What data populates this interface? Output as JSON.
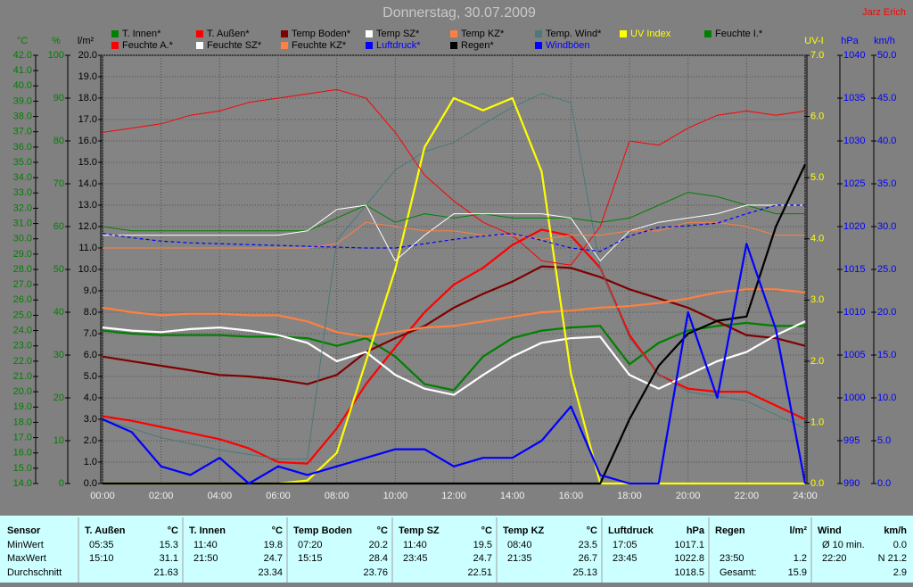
{
  "chart_data": {
    "type": "line",
    "title": "Donnerstag, 30.07.2009",
    "author": "Jarz Erich",
    "grid": true,
    "x": [
      0,
      1,
      2,
      3,
      4,
      5,
      6,
      7,
      8,
      9,
      10,
      11,
      12,
      13,
      14,
      15,
      16,
      17,
      18,
      19,
      20,
      21,
      22,
      23,
      24
    ],
    "xlim": [
      0,
      24
    ],
    "xticks": [
      {
        "value": 0,
        "label": "00:00"
      },
      {
        "value": 2,
        "label": "02:00"
      },
      {
        "value": 4,
        "label": "04:00"
      },
      {
        "value": 6,
        "label": "06:00"
      },
      {
        "value": 8,
        "label": "08:00"
      },
      {
        "value": 10,
        "label": "10:00"
      },
      {
        "value": 12,
        "label": "12:00"
      },
      {
        "value": 14,
        "label": "14:00"
      },
      {
        "value": 16,
        "label": "16:00"
      },
      {
        "value": 18,
        "label": "18:00"
      },
      {
        "value": 20,
        "label": "20:00"
      },
      {
        "value": 22,
        "label": "22:00"
      },
      {
        "value": 24,
        "label": "24:00"
      }
    ],
    "y_axes": [
      {
        "unit": "°C",
        "color": "#008000",
        "ylim": [
          14,
          42
        ],
        "yticks": [
          {
            "value": 14,
            "label": "14.0"
          },
          {
            "value": 15,
            "label": "15.0"
          },
          {
            "value": 16,
            "label": "16.0"
          },
          {
            "value": 17,
            "label": "17.0"
          },
          {
            "value": 18,
            "label": "18.0"
          },
          {
            "value": 19,
            "label": "19.0"
          },
          {
            "value": 20,
            "label": "20.0"
          },
          {
            "value": 21,
            "label": "21.0"
          },
          {
            "value": 22,
            "label": "22.0"
          },
          {
            "value": 23,
            "label": "23.0"
          },
          {
            "value": 24,
            "label": "24.0"
          },
          {
            "value": 25,
            "label": "25.0"
          },
          {
            "value": 26,
            "label": "26.0"
          },
          {
            "value": 27,
            "label": "27.0"
          },
          {
            "value": 28,
            "label": "28.0"
          },
          {
            "value": 29,
            "label": "29.0"
          },
          {
            "value": 30,
            "label": "30.0"
          },
          {
            "value": 31,
            "label": "31.0"
          },
          {
            "value": 32,
            "label": "32.0"
          },
          {
            "value": 33,
            "label": "33.0"
          },
          {
            "value": 34,
            "label": "34.0"
          },
          {
            "value": 35,
            "label": "35.0"
          },
          {
            "value": 36,
            "label": "36.0"
          },
          {
            "value": 37,
            "label": "37.0"
          },
          {
            "value": 38,
            "label": "38.0"
          },
          {
            "value": 39,
            "label": "39.0"
          },
          {
            "value": 40,
            "label": "40.0"
          },
          {
            "value": 41,
            "label": "41.0"
          },
          {
            "value": 42,
            "label": "42.0"
          }
        ]
      },
      {
        "unit": "%",
        "color": "#008000",
        "ylim": [
          0,
          100
        ],
        "yticks": [
          0,
          10,
          20,
          30,
          40,
          50,
          60,
          70,
          80,
          90,
          100
        ]
      },
      {
        "unit": "l/m²",
        "color": "#000000",
        "grid": true,
        "ylim": [
          0,
          20
        ],
        "yticks": [
          {
            "value": 0,
            "label": "0.0"
          },
          {
            "value": 1,
            "label": "1.0"
          },
          {
            "value": 2,
            "label": "2.0"
          },
          {
            "value": 3,
            "label": "3.0"
          },
          {
            "value": 4,
            "label": "4.0"
          },
          {
            "value": 5,
            "label": "5.0"
          },
          {
            "value": 6,
            "label": "6.0"
          },
          {
            "value": 7,
            "label": "7.0"
          },
          {
            "value": 8,
            "label": "8.0"
          },
          {
            "value": 9,
            "label": "9.0"
          },
          {
            "value": 10,
            "label": "10.0"
          },
          {
            "value": 11,
            "label": "11.0"
          },
          {
            "value": 12,
            "label": "12.0"
          },
          {
            "value": 13,
            "label": "13.0"
          },
          {
            "value": 14,
            "label": "14.0"
          },
          {
            "value": 15,
            "label": "15.0"
          },
          {
            "value": 16,
            "label": "16.0"
          },
          {
            "value": 17,
            "label": "17.0"
          },
          {
            "value": 18,
            "label": "18.0"
          },
          {
            "value": 19,
            "label": "19.0"
          },
          {
            "value": 20,
            "label": "20.0"
          }
        ]
      },
      {
        "unit": "UV-I",
        "color": "#ffff00",
        "ylim": [
          0,
          7
        ],
        "yticks": [
          {
            "value": 0,
            "label": "0.0"
          },
          {
            "value": 1,
            "label": "1.0"
          },
          {
            "value": 2,
            "label": "2.0"
          },
          {
            "value": 3,
            "label": "3.0"
          },
          {
            "value": 4,
            "label": "4.0"
          },
          {
            "value": 5,
            "label": "5.0"
          },
          {
            "value": 6,
            "label": "6.0"
          },
          {
            "value": 7,
            "label": "7.0"
          }
        ]
      },
      {
        "unit": "hPa",
        "color": "#0000ff",
        "ylim": [
          990,
          1040
        ],
        "yticks": [
          990,
          995,
          1000,
          1005,
          1010,
          1015,
          1020,
          1025,
          1030,
          1035,
          1040
        ]
      },
      {
        "unit": "km/h",
        "color": "#0000ff",
        "ylim": [
          0,
          50
        ],
        "yticks": [
          {
            "value": 0,
            "label": "0.0"
          },
          {
            "value": 5,
            "label": "5.0"
          },
          {
            "value": 10,
            "label": "10.0"
          },
          {
            "value": 15,
            "label": "15.0"
          },
          {
            "value": 20,
            "label": "20.0"
          },
          {
            "value": 25,
            "label": "25.0"
          },
          {
            "value": 30,
            "label": "30.0"
          },
          {
            "value": 35,
            "label": "35.0"
          },
          {
            "value": 40,
            "label": "40.0"
          },
          {
            "value": 45,
            "label": "45.0"
          },
          {
            "value": 50,
            "label": "50.0"
          }
        ]
      }
    ],
    "series": [
      {
        "name": "T. Innen*",
        "color": "#008000",
        "axis": "°C",
        "style": "thick",
        "values": [
          24.0,
          23.8,
          23.7,
          23.7,
          23.7,
          23.6,
          23.6,
          23.5,
          23.0,
          23.5,
          22.3,
          20.5,
          20.1,
          22.3,
          23.5,
          24.0,
          24.2,
          24.3,
          21.8,
          23.2,
          24.0,
          24.3,
          24.5,
          24.3,
          24.3
        ]
      },
      {
        "name": "T. Außen*",
        "color": "#ff0000",
        "axis": "°C",
        "style": "thick",
        "values": [
          18.4,
          18.1,
          17.7,
          17.3,
          16.9,
          16.3,
          15.4,
          15.3,
          17.6,
          20.5,
          22.9,
          25.2,
          27.0,
          28.1,
          29.6,
          30.6,
          30.2,
          28.1,
          23.7,
          21.1,
          20.2,
          20.0,
          20.0,
          19.1,
          18.2
        ]
      },
      {
        "name": "Temp Boden*",
        "color": "#800000",
        "axis": "°C",
        "style": "thick",
        "values": [
          22.3,
          22.0,
          21.7,
          21.4,
          21.1,
          21.0,
          20.8,
          20.5,
          21.1,
          22.6,
          23.5,
          24.3,
          25.5,
          26.4,
          27.2,
          28.2,
          28.1,
          27.5,
          26.7,
          26.1,
          25.5,
          24.6,
          23.7,
          23.5,
          23.0
        ]
      },
      {
        "name": "Temp SZ*",
        "color": "#ffffff",
        "axis": "°C",
        "style": "thick",
        "values": [
          24.2,
          24.0,
          23.9,
          24.1,
          24.2,
          24.0,
          23.7,
          23.2,
          22.0,
          22.6,
          21.1,
          20.2,
          19.8,
          21.1,
          22.3,
          23.2,
          23.5,
          23.6,
          21.1,
          20.2,
          21.1,
          22.0,
          22.6,
          23.7,
          24.6
        ]
      },
      {
        "name": "Temp KZ*",
        "color": "#ff8040",
        "axis": "°C",
        "style": "thick",
        "values": [
          25.5,
          25.2,
          25.0,
          25.1,
          25.1,
          25.0,
          25.0,
          24.6,
          23.9,
          23.6,
          23.9,
          24.2,
          24.3,
          24.6,
          24.9,
          25.2,
          25.3,
          25.5,
          25.6,
          25.8,
          26.1,
          26.5,
          26.7,
          26.7,
          26.5
        ]
      },
      {
        "name": "Temp. Wind*",
        "color": "#4a7a7a",
        "axis": "°C",
        "style": "thin",
        "values": [
          18.2,
          17.6,
          17.0,
          16.6,
          16.2,
          15.9,
          15.6,
          15.6,
          29.9,
          32.2,
          34.5,
          35.7,
          36.3,
          37.5,
          38.6,
          39.5,
          38.9,
          28.1,
          23.5,
          21.1,
          20.0,
          19.7,
          19.4,
          18.5,
          17.6
        ]
      },
      {
        "name": "UV Index",
        "color": "#ffff00",
        "legend_color": "#ffff00",
        "axis": "UV-I",
        "style": "thick",
        "values": [
          0,
          0,
          0,
          0,
          0,
          0,
          0,
          0.05,
          0.5,
          2.0,
          3.5,
          5.5,
          6.3,
          6.1,
          6.3,
          5.1,
          1.8,
          0,
          0,
          0,
          0,
          0,
          0,
          0,
          0
        ]
      },
      {
        "name": "Feuchte I.*",
        "color": "#008000",
        "axis": "%",
        "style": "thin",
        "values": [
          60,
          59,
          59,
          59,
          59,
          59,
          59,
          59,
          62,
          65,
          61,
          63,
          62,
          63,
          62,
          62,
          62,
          61,
          62,
          65,
          68,
          67,
          65,
          63,
          63
        ]
      },
      {
        "name": "Feuchte A.*",
        "color": "#ff0000",
        "axis": "%",
        "style": "thin",
        "values": [
          82,
          83,
          84,
          86,
          87,
          89,
          90,
          91,
          92,
          90,
          82,
          72,
          66,
          61,
          58,
          52,
          51,
          60,
          80,
          79,
          83,
          86,
          87,
          86,
          87
        ]
      },
      {
        "name": "Feuchte SZ*",
        "color": "#ffffff",
        "axis": "%",
        "style": "thin",
        "values": [
          58,
          58,
          58,
          58,
          58,
          58,
          58,
          59,
          64,
          65,
          52,
          58,
          63,
          63,
          63,
          63,
          62,
          52,
          59,
          61,
          62,
          63,
          65,
          65,
          65
        ]
      },
      {
        "name": "Feuchte KZ*",
        "color": "#ff8040",
        "axis": "%",
        "style": "thin",
        "values": [
          55,
          55,
          55,
          55,
          55,
          55,
          55,
          55,
          56,
          61,
          60,
          59,
          59,
          58,
          58,
          57,
          58,
          58,
          59,
          59,
          61,
          61,
          60,
          58,
          58
        ]
      },
      {
        "name": "Luftdruck*",
        "color": "#0000ff",
        "legend_color": "#0000ff",
        "axis": "hPa",
        "style": "dashed",
        "values": [
          1019.2,
          1018.7,
          1018.3,
          1018.1,
          1018.0,
          1017.9,
          1017.8,
          1017.7,
          1017.6,
          1017.5,
          1017.5,
          1018.0,
          1018.5,
          1018.9,
          1019.2,
          1018.4,
          1017.5,
          1017.1,
          1018.9,
          1019.9,
          1020.1,
          1020.4,
          1021.5,
          1022.5,
          1022.5
        ]
      },
      {
        "name": "Regen*",
        "color": "#000000",
        "axis": "l/m²",
        "style": "thick",
        "values": [
          0,
          0,
          0,
          0,
          0,
          0,
          0,
          0,
          0,
          0,
          0,
          0,
          0,
          0,
          0,
          0,
          0,
          0,
          3.0,
          5.5,
          7.0,
          7.6,
          7.8,
          12.0,
          14.9
        ]
      },
      {
        "name": "Windböen",
        "color": "#0000ff",
        "legend_color": "#0000ff",
        "axis": "km/h",
        "style": "thick",
        "values": [
          7.5,
          6,
          2,
          1,
          3,
          0,
          2,
          1,
          2,
          3,
          4,
          4,
          2,
          3,
          3,
          5,
          9,
          1,
          0,
          0,
          20,
          10,
          28,
          18,
          0
        ]
      }
    ]
  },
  "stats": {
    "labels": [
      "Sensor",
      "MinWert",
      "MaxWert",
      "Durchschnitt"
    ],
    "columns": [
      {
        "name": "T. Außen",
        "unit": "°C",
        "min": {
          "label": "05:35",
          "value": "15.3"
        },
        "max": {
          "label": "15:10",
          "value": "31.1"
        },
        "avg": {
          "value": "21.63"
        }
      },
      {
        "name": "T. Innen",
        "unit": "°C",
        "min": {
          "label": "11:40",
          "value": "19.8"
        },
        "max": {
          "label": "21:50",
          "value": "24.7"
        },
        "avg": {
          "value": "23.34"
        }
      },
      {
        "name": "Temp Boden",
        "unit": "°C",
        "min": {
          "label": "07:20",
          "value": "20.2"
        },
        "max": {
          "label": "15:15",
          "value": "28.4"
        },
        "avg": {
          "value": "23.76"
        }
      },
      {
        "name": "Temp SZ",
        "unit": "°C",
        "min": {
          "label": "11:40",
          "value": "19.5"
        },
        "max": {
          "label": "23:45",
          "value": "24.7"
        },
        "avg": {
          "value": "22.51"
        }
      },
      {
        "name": "Temp KZ",
        "unit": "°C",
        "min": {
          "label": "08:40",
          "value": "23.5"
        },
        "max": {
          "label": "21:35",
          "value": "26.7"
        },
        "avg": {
          "value": "25.13"
        }
      },
      {
        "name": "Luftdruck",
        "unit": "hPa",
        "min": {
          "label": "17:05",
          "value": "1017.1"
        },
        "max": {
          "label": "23:45",
          "value": "1022.8"
        },
        "avg": {
          "value": "1018.5"
        }
      },
      {
        "name": "Regen",
        "unit": "l/m²",
        "max": {
          "label": "23:50",
          "value": "1.2"
        },
        "avg": {
          "label": "Gesamt:",
          "value": "15.9"
        }
      },
      {
        "name": "Wind",
        "unit": "km/h",
        "min": {
          "label": "Ø 10 min.",
          "value": "0.0"
        },
        "max": {
          "label": "22:20",
          "value": "N 21.2"
        },
        "avg": {
          "value": "2.9"
        }
      }
    ]
  }
}
